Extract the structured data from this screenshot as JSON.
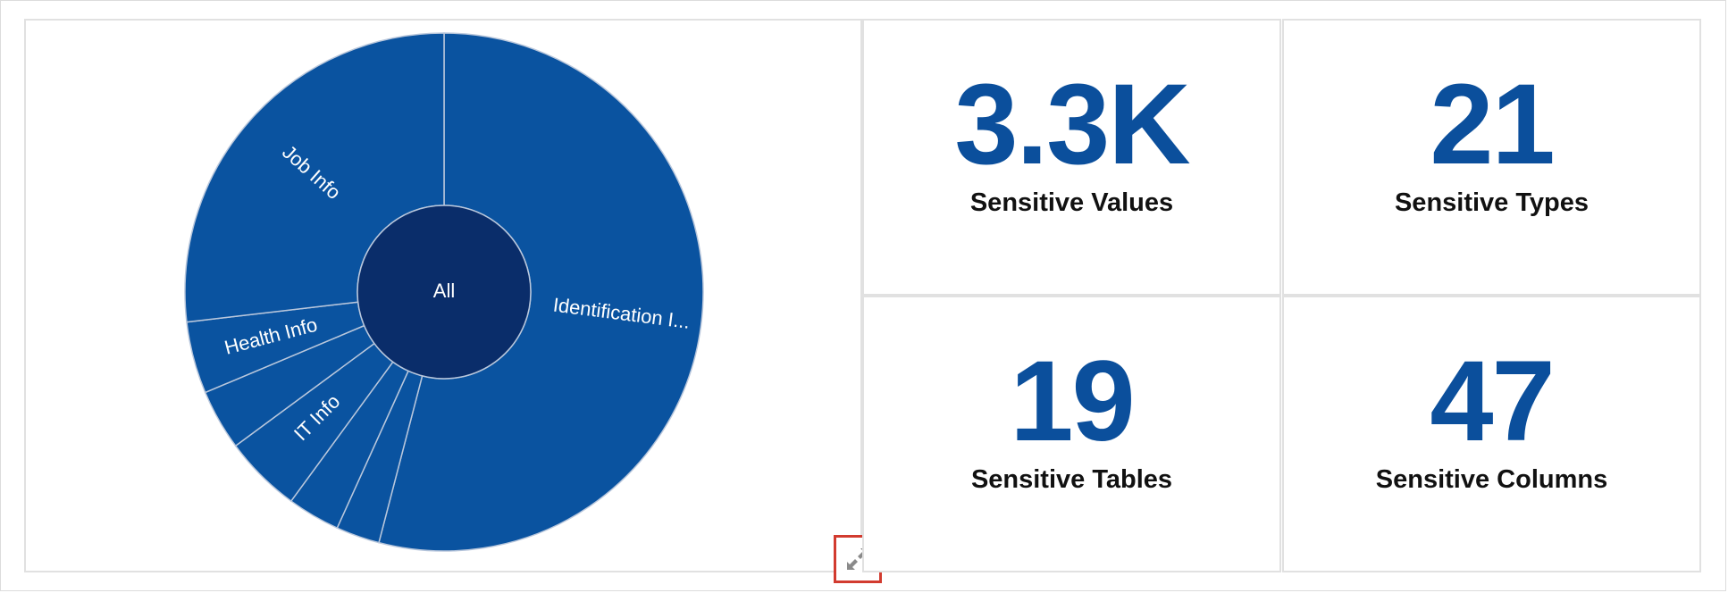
{
  "chart_data": {
    "type": "sunburst",
    "center_label": "All",
    "slices": [
      {
        "label": "Identification I...",
        "share": 0.5405
      },
      {
        "label": "",
        "share": 0.0272
      },
      {
        "label": "",
        "share": 0.0328
      },
      {
        "label": "IT Info",
        "share": 0.0483
      },
      {
        "label": "",
        "share": 0.0378
      },
      {
        "label": "Health Info",
        "share": 0.0449
      },
      {
        "label": "Job Info",
        "share": 0.2685
      }
    ],
    "colors": {
      "center": "#0a2d6a",
      "ring": "#0a53a0",
      "separator": "#b9c7dc"
    }
  },
  "stats": {
    "values": {
      "value": "3.3K",
      "label": "Sensitive Values"
    },
    "types": {
      "value": "21",
      "label": "Sensitive Types"
    },
    "tables": {
      "value": "19",
      "label": "Sensitive Tables"
    },
    "columns": {
      "value": "47",
      "label": "Sensitive Columns"
    }
  },
  "controls": {
    "expand_icon": "expand-arrows-icon",
    "accent": "#d23b2f"
  }
}
